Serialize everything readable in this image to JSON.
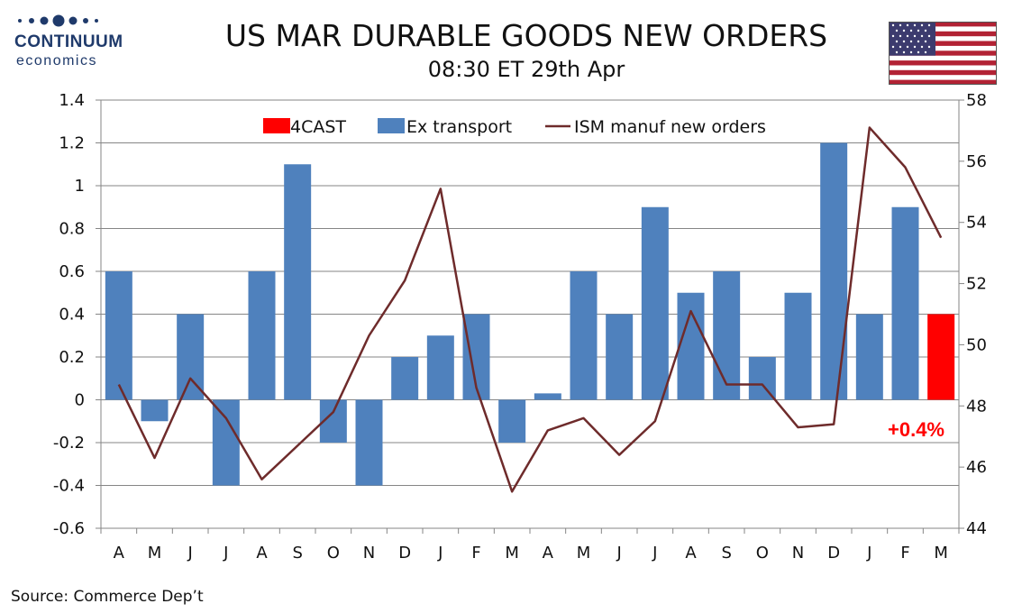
{
  "header": {
    "brand_name": "CONTINUUM",
    "brand_sub": "economics",
    "title": "US MAR DURABLE GOODS NEW ORDERS",
    "subtitle": "08:30 ET 29th Apr"
  },
  "footer": {
    "source": "Source: Commerce Dep’t"
  },
  "colors": {
    "ex_transport": "#4f81bd",
    "forecast": "#ff0000",
    "ism_line": "#6e2b2b",
    "brand": "#1f3a6b"
  },
  "chart_data": {
    "type": "bar",
    "categories": [
      "A",
      "M",
      "J",
      "J",
      "A",
      "S",
      "O",
      "N",
      "D",
      "J",
      "F",
      "M",
      "A",
      "M",
      "J",
      "J",
      "A",
      "S",
      "O",
      "N",
      "D",
      "J",
      "F",
      "M"
    ],
    "series": [
      {
        "name": "Ex transport",
        "type": "bar",
        "axis": "left",
        "values": [
          0.6,
          -0.1,
          0.4,
          -0.4,
          0.6,
          1.1,
          -0.2,
          -0.4,
          0.2,
          0.3,
          0.4,
          -0.2,
          0.03,
          0.6,
          0.4,
          0.9,
          0.5,
          0.6,
          0.2,
          0.5,
          1.2,
          0.4,
          0.9,
          null
        ]
      },
      {
        "name": "4CAST",
        "type": "bar",
        "axis": "left",
        "values": [
          null,
          null,
          null,
          null,
          null,
          null,
          null,
          null,
          null,
          null,
          null,
          null,
          null,
          null,
          null,
          null,
          null,
          null,
          null,
          null,
          null,
          null,
          null,
          0.4
        ]
      },
      {
        "name": "ISM manuf new orders",
        "type": "line",
        "axis": "right",
        "values": [
          48.7,
          46.3,
          48.9,
          47.6,
          45.6,
          46.7,
          47.8,
          50.3,
          52.1,
          55.1,
          48.6,
          45.2,
          47.2,
          47.6,
          46.4,
          47.5,
          51.1,
          48.7,
          48.7,
          47.3,
          47.4,
          57.1,
          55.8,
          53.5
        ]
      }
    ],
    "left_axis": {
      "ylim": [
        -0.6,
        1.4
      ],
      "ticks": [
        1.4,
        1.2,
        1,
        0.8,
        0.6,
        0.4,
        0.2,
        0,
        -0.2,
        -0.4,
        -0.6
      ],
      "tick_labels": [
        "1.4",
        "1.2",
        "1",
        "0.8",
        "0.6",
        "0.4",
        "0.2",
        "0",
        "-0.2",
        "-0.4",
        "-0.6"
      ]
    },
    "right_axis": {
      "ylim": [
        44,
        58
      ],
      "ticks": [
        58,
        56,
        54,
        52,
        50,
        48,
        46,
        44
      ],
      "tick_labels": [
        "58",
        "56",
        "54",
        "52",
        "50",
        "48",
        "46",
        "44"
      ]
    },
    "annotation": "+0.4%",
    "grid": "horizontal",
    "legend_position": "top"
  }
}
